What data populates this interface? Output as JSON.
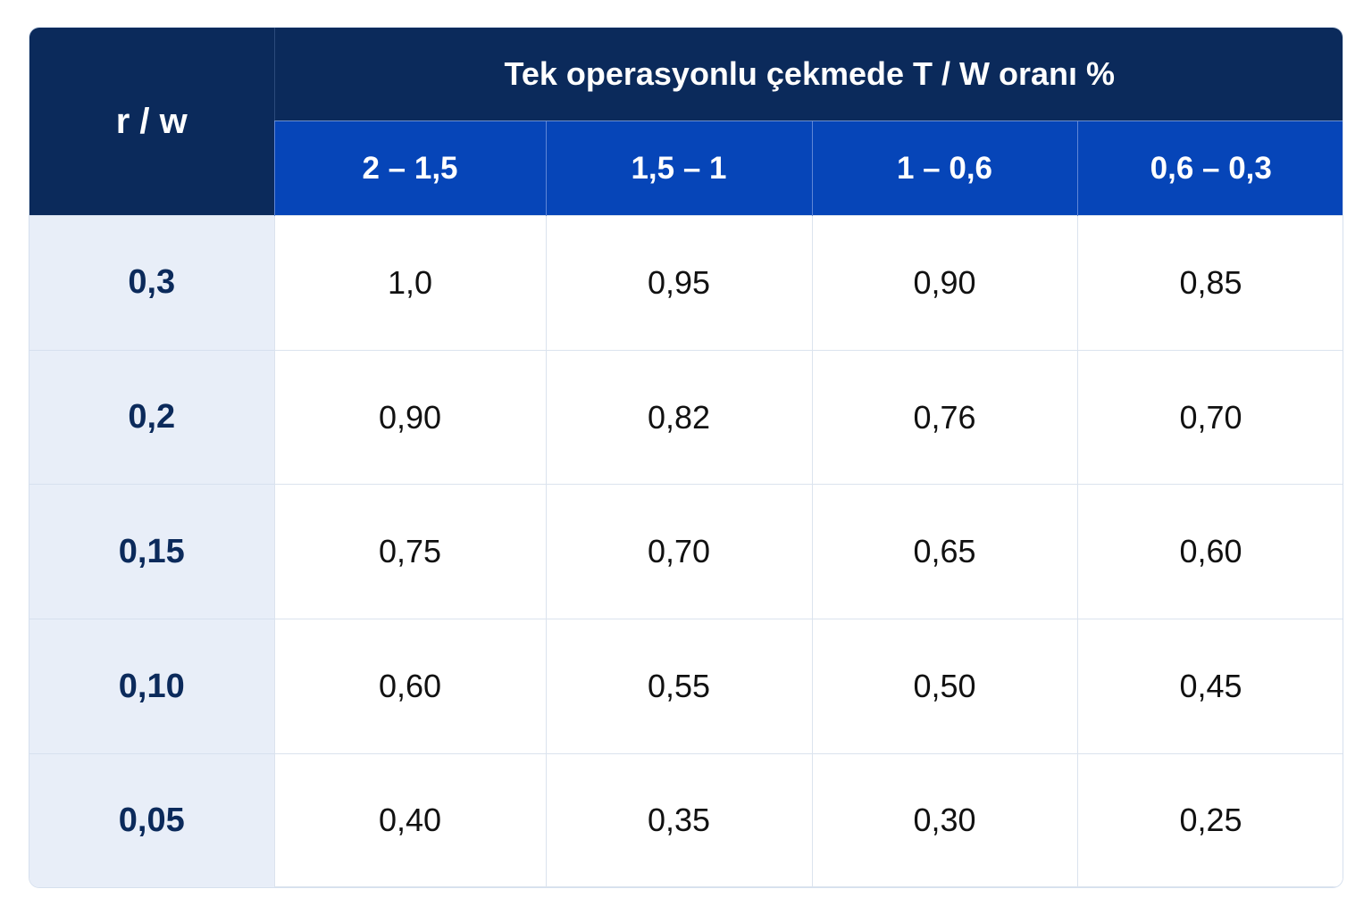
{
  "table": {
    "corner": "r / w",
    "group_header": "Tek operasyonlu çekmede T / W oranı %",
    "columns": [
      "2 – 1,5",
      "1,5 – 1",
      "1 – 0,6",
      "0,6 – 0,3"
    ],
    "rows": [
      {
        "label": "0,3",
        "values": [
          "1,0",
          "0,95",
          "0,90",
          "0,85"
        ]
      },
      {
        "label": "0,2",
        "values": [
          "0,90",
          "0,82",
          "0,76",
          "0,70"
        ]
      },
      {
        "label": "0,15",
        "values": [
          "0,75",
          "0,70",
          "0,65",
          "0,60"
        ]
      },
      {
        "label": "0,10",
        "values": [
          "0,60",
          "0,55",
          "0,50",
          "0,45"
        ]
      },
      {
        "label": "0,05",
        "values": [
          "0,40",
          "0,35",
          "0,30",
          "0,25"
        ]
      }
    ]
  }
}
